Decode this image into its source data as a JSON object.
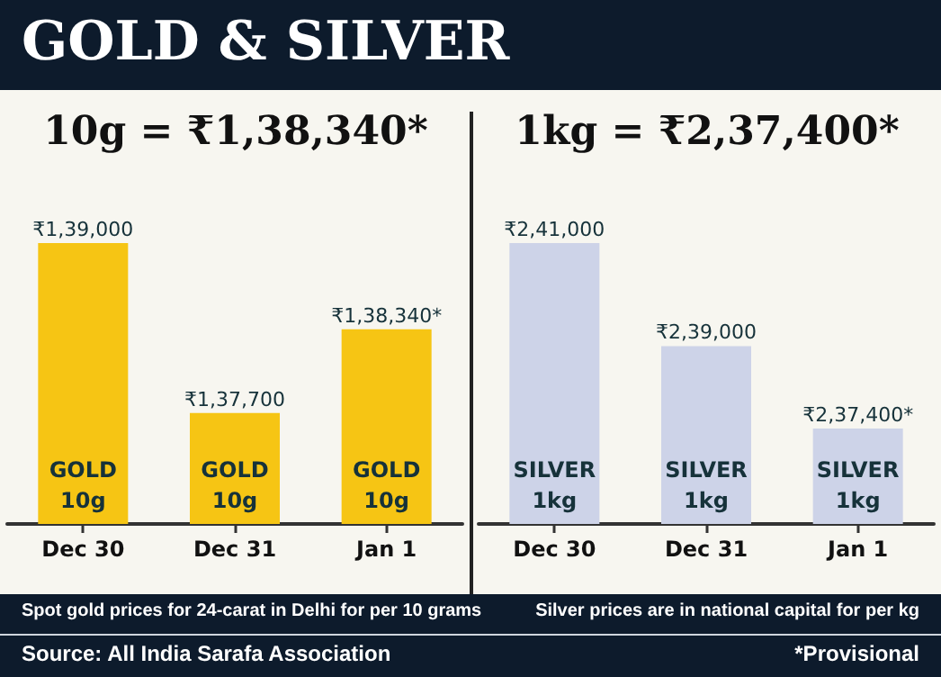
{
  "chart_data": [
    {
      "type": "bar",
      "title": "GOLD & SILVER",
      "subtitle": "10g = ₹1,38,340*",
      "categories": [
        "Dec 30",
        "Dec 31",
        "Jan 1"
      ],
      "values": [
        139000,
        137700,
        138340
      ],
      "color": "#f6c514",
      "ylim": [
        136850,
        139000
      ],
      "grid": false,
      "value_labels": [
        "₹1,39,000",
        "₹1,37,700",
        "₹1,38,340*"
      ],
      "annotations": [
        "GOLD\n10g",
        "GOLD\n10g",
        "GOLD\n10g",
        "Spot gold prices for 24-carat in Delhi for per 10 grams",
        "Source: All India Sarafa Association"
      ]
    },
    {
      "type": "bar",
      "subtitle": "1kg = ₹2,37,400*",
      "categories": [
        "Dec 30",
        "Dec 31",
        "Jan 1"
      ],
      "values": [
        241000,
        239000,
        237400
      ],
      "color": "#cdd3e8",
      "ylim": [
        235550,
        241000
      ],
      "grid": false,
      "value_labels": [
        "₹2,41,000",
        "₹2,39,000",
        "₹2,37,400*"
      ],
      "annotations": [
        "SILVER\n1kg",
        "SILVER\n1kg",
        "SILVER\n1kg",
        "Silver prices are in national capital for per kg",
        "*Provisional"
      ]
    }
  ]
}
